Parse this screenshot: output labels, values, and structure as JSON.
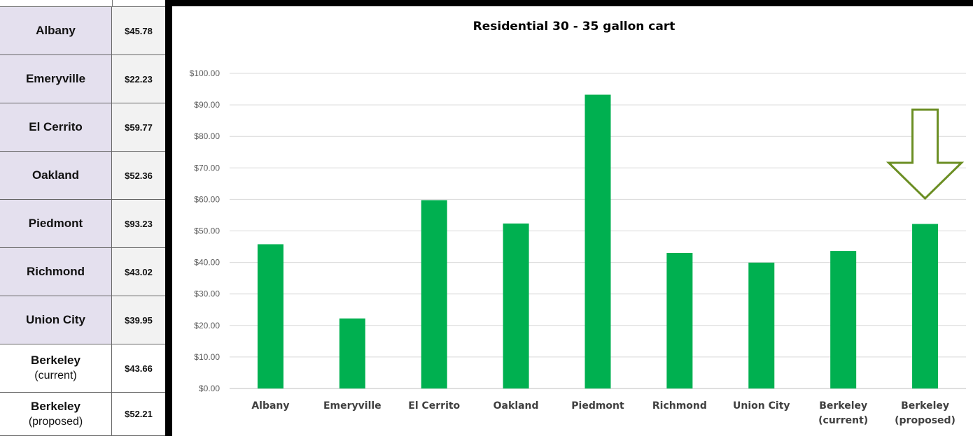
{
  "table": {
    "rows": [
      {
        "city": "Albany",
        "sub": "",
        "amount": "$45.78",
        "shaded": true
      },
      {
        "city": "Emeryville",
        "sub": "",
        "amount": "$22.23",
        "shaded": true
      },
      {
        "city": "El Cerrito",
        "sub": "",
        "amount": "$59.77",
        "shaded": true
      },
      {
        "city": "Oakland",
        "sub": "",
        "amount": "$52.36",
        "shaded": true
      },
      {
        "city": "Piedmont",
        "sub": "",
        "amount": "$93.23",
        "shaded": true
      },
      {
        "city": "Richmond",
        "sub": "",
        "amount": "$43.02",
        "shaded": true
      },
      {
        "city": "Union City",
        "sub": "",
        "amount": "$39.95",
        "shaded": true
      },
      {
        "city": "Berkeley",
        "sub": "(current)",
        "amount": "$43.66",
        "shaded": false
      },
      {
        "city": "Berkeley",
        "sub": "(proposed)",
        "amount": "$52.21",
        "shaded": false
      }
    ]
  },
  "chart_data": {
    "type": "bar",
    "title": "Residential 30 - 35 gallon cart",
    "xlabel": "",
    "ylabel": "",
    "categories": [
      [
        "Albany"
      ],
      [
        "Emeryville"
      ],
      [
        "El Cerrito"
      ],
      [
        "Oakland"
      ],
      [
        "Piedmont"
      ],
      [
        "Richmond"
      ],
      [
        "Union City"
      ],
      [
        "Berkeley",
        "(current)"
      ],
      [
        "Berkeley",
        "(proposed)"
      ]
    ],
    "values": [
      45.78,
      22.23,
      59.77,
      52.36,
      93.23,
      43.02,
      39.95,
      43.66,
      52.21
    ],
    "ylim": [
      0,
      100
    ],
    "yticks": [
      "$0.00",
      "$10.00",
      "$20.00",
      "$30.00",
      "$40.00",
      "$50.00",
      "$60.00",
      "$70.00",
      "$80.00",
      "$90.00",
      "$100.00"
    ],
    "grid": true,
    "legend": "none",
    "bar_color": "#00b050",
    "annotation": {
      "shape": "down-arrow-outline",
      "target_category_index": 8,
      "color": "#6b8e23"
    }
  }
}
